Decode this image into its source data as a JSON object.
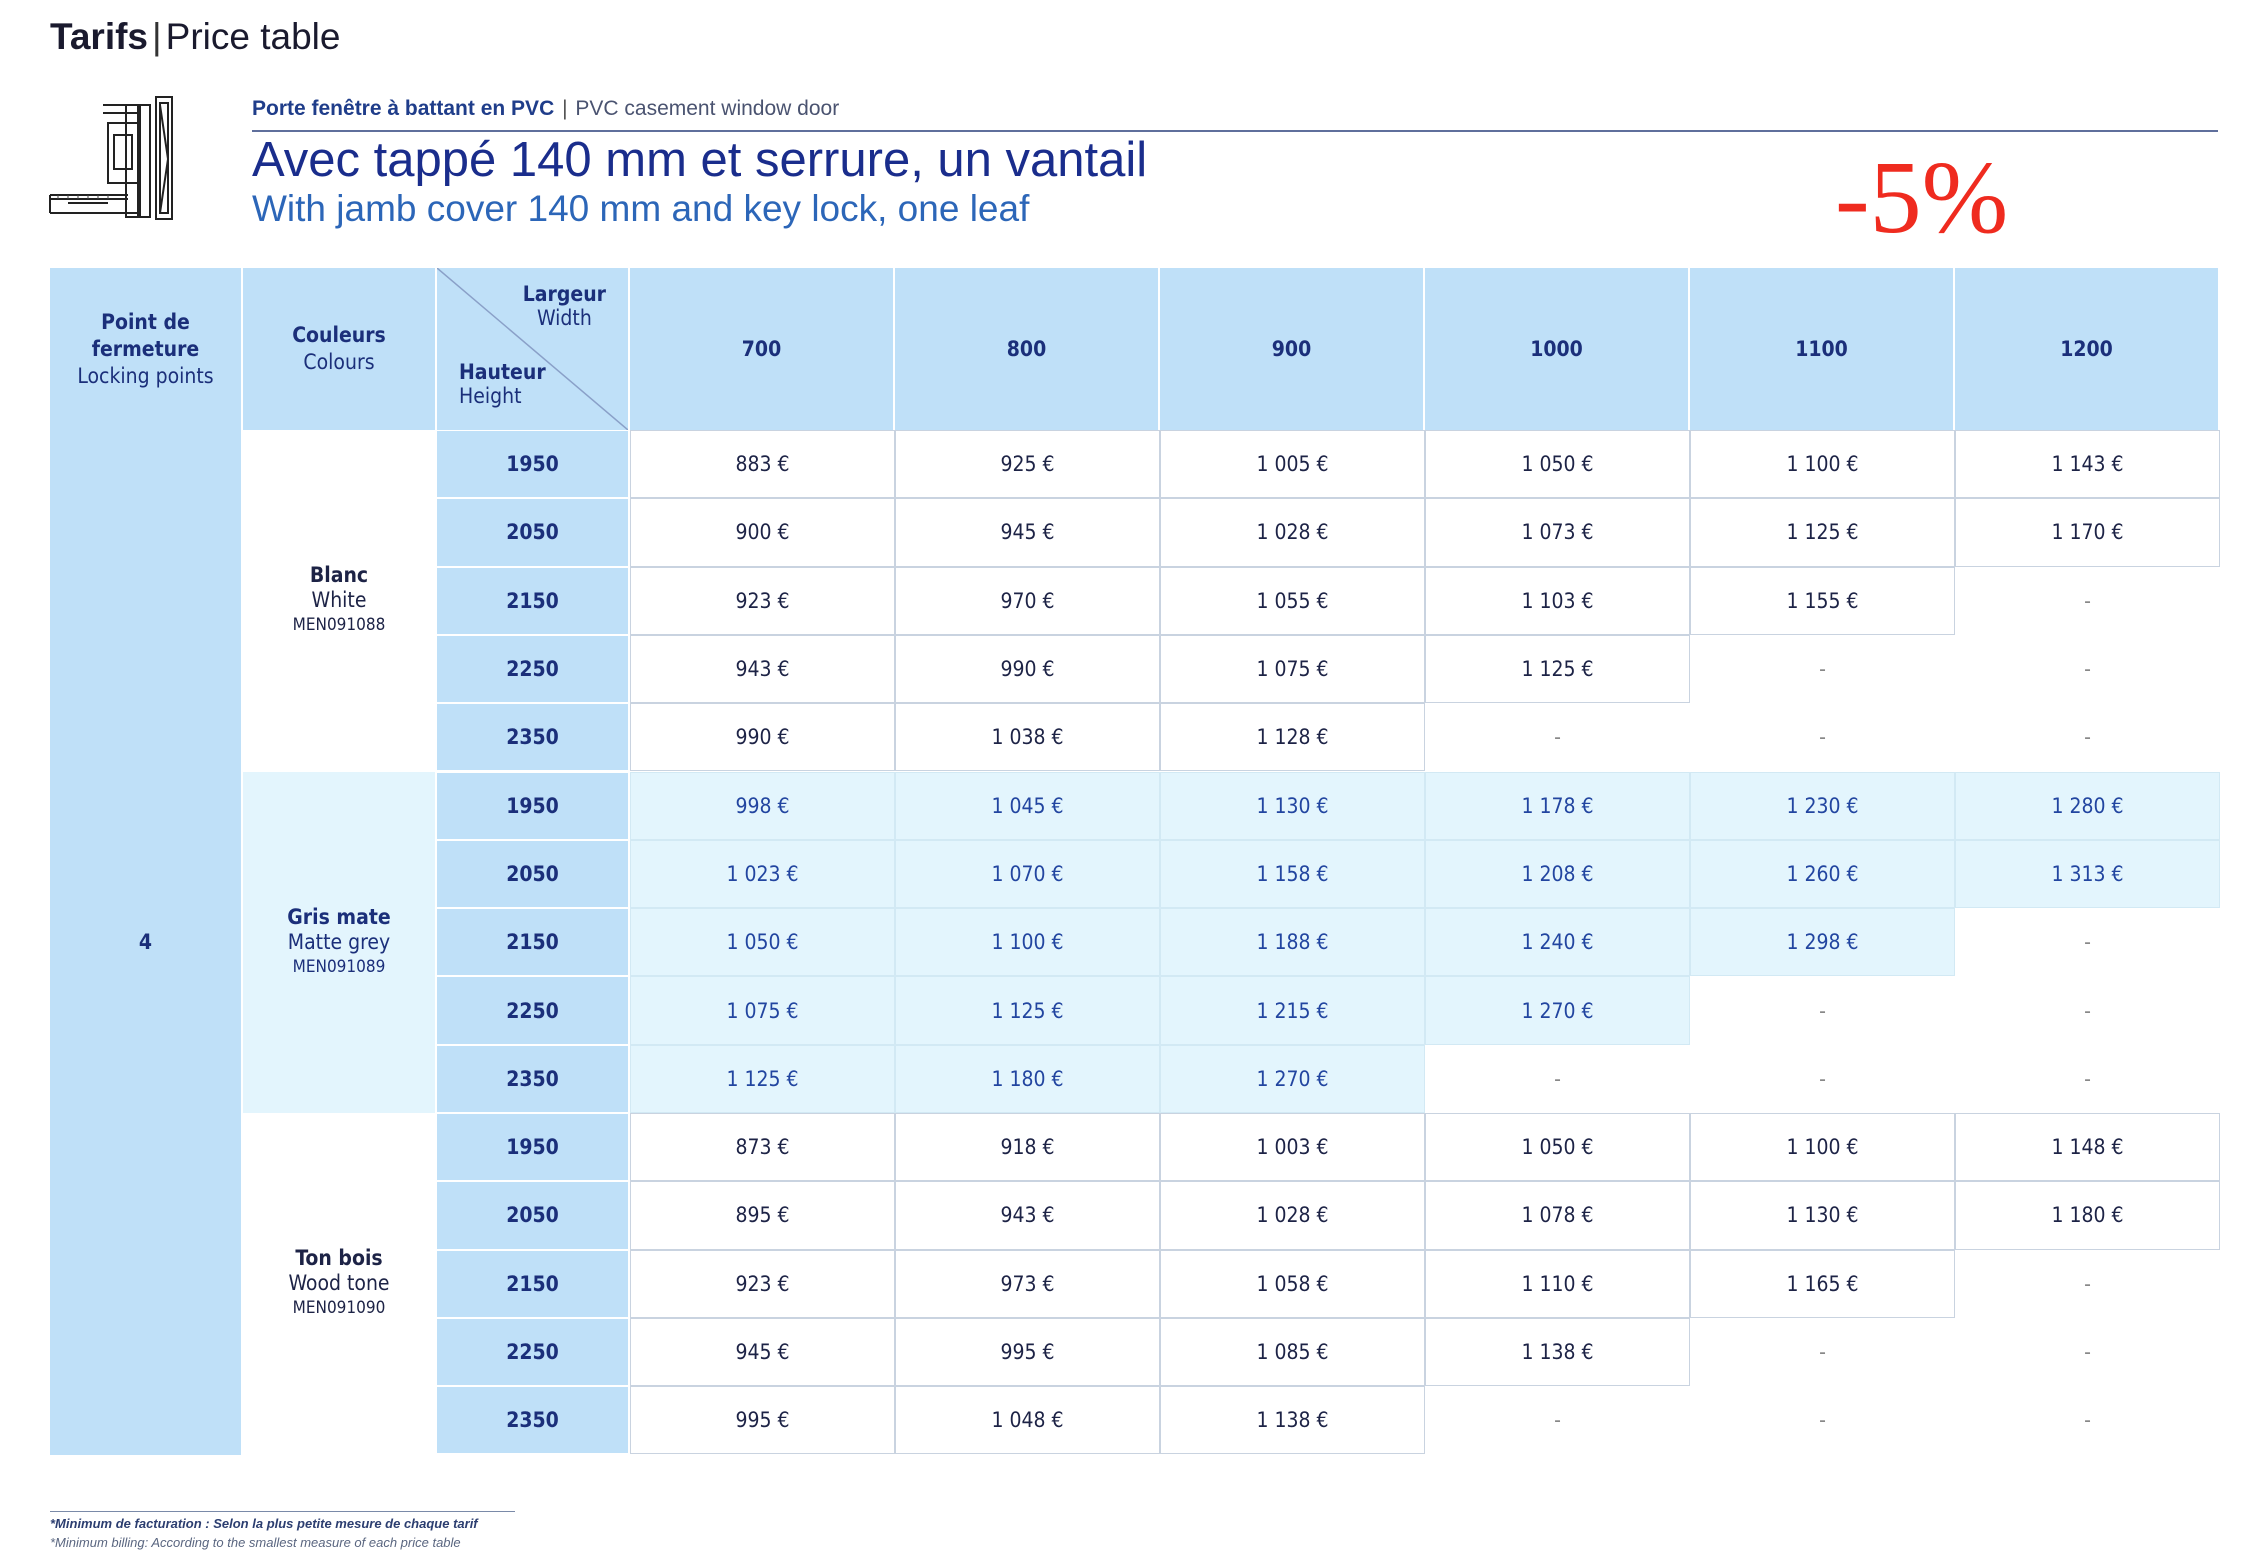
{
  "header": {
    "title_bold": "Tarifs",
    "title_sep": "|",
    "title_light": "Price table"
  },
  "product": {
    "icon": "window-door-diagram-icon",
    "subtitle_fr": "Porte fenêtre à battant en PVC",
    "subtitle_sep": "|",
    "subtitle_en": "PVC casement window door",
    "heading_fr": "Avec tappé 140 mm et serrure, un vantail",
    "heading_en": "With jamb cover 140 mm and key lock, one leaf",
    "discount": "-5%"
  },
  "table": {
    "col_lock_fr": "Point de fermeture",
    "col_lock_en": "Locking points",
    "col_color_fr": "Couleurs",
    "col_color_en": "Colours",
    "width_fr": "Largeur",
    "width_en": "Width",
    "height_fr": "Hauteur",
    "height_en": "Height",
    "widths": [
      "700",
      "800",
      "900",
      "1000",
      "1100",
      "1200"
    ],
    "locking_points": "4",
    "groups": [
      {
        "name_fr": "Blanc",
        "name_en": "White",
        "ref": "MEN091088",
        "rows": [
          {
            "height": "1950",
            "prices": [
              "883 €",
              "925 €",
              "1 005 €",
              "1 050 €",
              "1 100 €",
              "1 143 €"
            ]
          },
          {
            "height": "2050",
            "prices": [
              "900 €",
              "945 €",
              "1 028 €",
              "1 073 €",
              "1 125 €",
              "1 170 €"
            ]
          },
          {
            "height": "2150",
            "prices": [
              "923 €",
              "970 €",
              "1 055 €",
              "1 103 €",
              "1 155 €",
              "-"
            ]
          },
          {
            "height": "2250",
            "prices": [
              "943 €",
              "990 €",
              "1 075 €",
              "1 125 €",
              "-",
              "-"
            ]
          },
          {
            "height": "2350",
            "prices": [
              "990 €",
              "1 038 €",
              "1 128 €",
              "-",
              "-",
              "-"
            ]
          }
        ]
      },
      {
        "name_fr": "Gris mate",
        "name_en": "Matte grey",
        "ref": "MEN091089",
        "rows": [
          {
            "height": "1950",
            "prices": [
              "998 €",
              "1 045 €",
              "1 130 €",
              "1 178 €",
              "1 230 €",
              "1 280 €"
            ]
          },
          {
            "height": "2050",
            "prices": [
              "1 023 €",
              "1 070 €",
              "1 158 €",
              "1 208 €",
              "1 260 €",
              "1 313 €"
            ]
          },
          {
            "height": "2150",
            "prices": [
              "1 050 €",
              "1 100 €",
              "1 188 €",
              "1 240 €",
              "1 298 €",
              "-"
            ]
          },
          {
            "height": "2250",
            "prices": [
              "1 075 €",
              "1 125 €",
              "1 215 €",
              "1 270 €",
              "-",
              "-"
            ]
          },
          {
            "height": "2350",
            "prices": [
              "1 125 €",
              "1 180 €",
              "1 270 €",
              "-",
              "-",
              "-"
            ]
          }
        ]
      },
      {
        "name_fr": "Ton bois",
        "name_en": "Wood tone",
        "ref": "MEN091090",
        "rows": [
          {
            "height": "1950",
            "prices": [
              "873 €",
              "918 €",
              "1 003 €",
              "1 050 €",
              "1 100 €",
              "1 148 €"
            ]
          },
          {
            "height": "2050",
            "prices": [
              "895 €",
              "943 €",
              "1 028 €",
              "1 078 €",
              "1 130 €",
              "1 180 €"
            ]
          },
          {
            "height": "2150",
            "prices": [
              "923 €",
              "973 €",
              "1 058 €",
              "1 110 €",
              "1 165 €",
              "-"
            ]
          },
          {
            "height": "2250",
            "prices": [
              "945 €",
              "995 €",
              "1 085 €",
              "1 138 €",
              "-",
              "-"
            ]
          },
          {
            "height": "2350",
            "prices": [
              "995 €",
              "1 048 €",
              "1 138 €",
              "-",
              "-",
              "-"
            ]
          }
        ]
      }
    ]
  },
  "footnote": {
    "line1": "*Minimum de facturation : Selon la plus petite mesure de chaque tarif",
    "line2": "*Minimum billing: According to the smallest measure of each price table"
  },
  "colors": {
    "header_bg": "#bfe0f8",
    "grey_group_bg": "#e3f5fd",
    "discount": "#ef2b1f",
    "title_blue": "#1a2d8c"
  }
}
